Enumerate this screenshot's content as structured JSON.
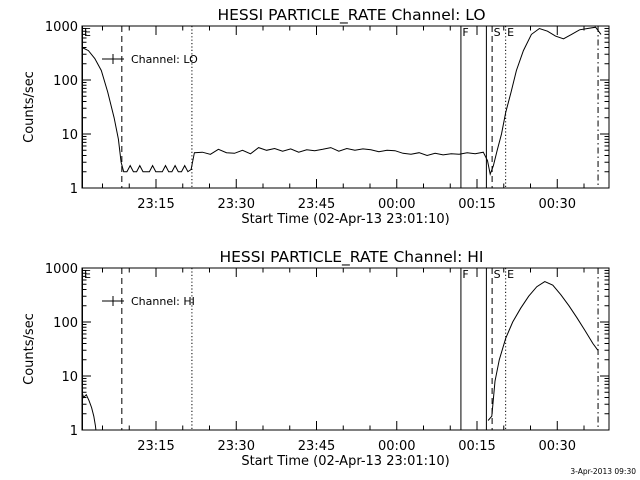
{
  "footer": {
    "timestamp": "3-Apr-2013 09:30"
  },
  "chart_data": [
    {
      "type": "line",
      "title": "HESSI PARTICLE_RATE Channel: LO",
      "xlabel": "Start Time (02-Apr-13 23:01:10)",
      "ylabel": "Counts/sec",
      "y_scale": "log",
      "ylim": [
        1,
        1000
      ],
      "xlim_minutes_after_start": [
        0,
        98.5
      ],
      "x_tick_labels": [
        {
          "label": "23:15",
          "minutes": 13.83
        },
        {
          "label": "23:30",
          "minutes": 28.83
        },
        {
          "label": "23:45",
          "minutes": 43.83
        },
        {
          "label": "00:00",
          "minutes": 58.83
        },
        {
          "label": "00:15",
          "minutes": 73.83
        },
        {
          "label": "00:30",
          "minutes": 88.83
        }
      ],
      "y_tick_labels": [
        {
          "label": "1",
          "value": 1
        },
        {
          "label": "10",
          "value": 10
        },
        {
          "label": "100",
          "value": 100
        },
        {
          "label": "1000",
          "value": 1000
        }
      ],
      "legend": {
        "label": "Channel: LO",
        "placement": "top-left"
      },
      "markers": [
        {
          "label": "E",
          "minutes": 0,
          "style": "solid"
        },
        {
          "label": "",
          "minutes": 7.35,
          "style": "dashed"
        },
        {
          "label": "",
          "minutes": 20.45,
          "style": "dotted"
        },
        {
          "label": "F",
          "minutes": 70.73,
          "style": "solid"
        },
        {
          "label": "",
          "minutes": 75.49,
          "style": "solid"
        },
        {
          "label": "S",
          "minutes": 76.56,
          "style": "dashed"
        },
        {
          "label": "E",
          "minutes": 79.09,
          "style": "dotted"
        },
        {
          "label": "",
          "minutes": 96.36,
          "style": "dashdot"
        }
      ],
      "series": [
        {
          "name": "Channel: LO",
          "minutes": [
            0,
            1.2,
            2.4,
            3.6,
            4.8,
            6.0,
            6.8,
            7.3,
            7.8,
            8.4,
            9.0,
            9.6,
            10.2,
            10.8,
            11.4,
            12.0,
            12.6,
            13.2,
            13.8,
            14.4,
            15.0,
            15.6,
            16.2,
            16.8,
            17.4,
            18.0,
            18.6,
            19.2,
            19.8,
            20.4,
            21.0,
            22.5,
            24.0,
            25.5,
            27.0,
            28.5,
            30.0,
            31.5,
            33.0,
            34.5,
            36.0,
            37.5,
            39.0,
            40.5,
            42.0,
            43.5,
            45.0,
            46.5,
            48.0,
            49.5,
            51.0,
            52.5,
            54.0,
            55.5,
            57.0,
            58.5,
            60.0,
            61.5,
            63.0,
            64.5,
            66.0,
            67.5,
            69.0,
            70.5,
            72.0,
            73.5,
            75.0,
            75.8,
            76.3,
            76.9,
            77.6,
            78.4,
            79.2,
            80.2,
            81.2,
            82.5,
            84.0,
            85.5,
            87.0,
            88.5,
            90.0,
            91.5,
            93.0,
            94.5,
            96.0,
            97.0
          ],
          "values": [
            400,
            350,
            250,
            150,
            60,
            20,
            8,
            3,
            2,
            2,
            2.6,
            2,
            2,
            2.6,
            2,
            2,
            2,
            2.6,
            2,
            2,
            2,
            2.6,
            2,
            2,
            2.6,
            2,
            2,
            2.6,
            2,
            2.2,
            4.5,
            4.6,
            4.2,
            5.2,
            4.5,
            4.4,
            5.0,
            4.3,
            5.6,
            5.0,
            5.4,
            4.8,
            5.3,
            4.6,
            5.1,
            4.9,
            5.2,
            5.6,
            4.8,
            5.4,
            5.0,
            5.3,
            5.1,
            4.7,
            5.0,
            4.9,
            4.4,
            4.2,
            4.5,
            4.0,
            4.4,
            4.1,
            4.3,
            4.2,
            4.5,
            4.3,
            4.6,
            3.2,
            1.8,
            2.6,
            5,
            10,
            25,
            60,
            150,
            350,
            700,
            900,
            800,
            650,
            580,
            700,
            850,
            900,
            950,
            700
          ]
        }
      ]
    },
    {
      "type": "line",
      "title": "HESSI PARTICLE_RATE Channel: HI",
      "xlabel": "Start Time (02-Apr-13 23:01:10)",
      "ylabel": "Counts/sec",
      "y_scale": "log",
      "ylim": [
        1,
        1000
      ],
      "xlim_minutes_after_start": [
        0,
        98.5
      ],
      "x_tick_labels": [
        {
          "label": "23:15",
          "minutes": 13.83
        },
        {
          "label": "23:30",
          "minutes": 28.83
        },
        {
          "label": "23:45",
          "minutes": 43.83
        },
        {
          "label": "00:00",
          "minutes": 58.83
        },
        {
          "label": "00:15",
          "minutes": 73.83
        },
        {
          "label": "00:30",
          "minutes": 88.83
        }
      ],
      "y_tick_labels": [
        {
          "label": "1",
          "value": 1
        },
        {
          "label": "10",
          "value": 10
        },
        {
          "label": "100",
          "value": 100
        },
        {
          "label": "1000",
          "value": 1000
        }
      ],
      "legend": {
        "label": "Channel: HI",
        "placement": "top-left"
      },
      "markers": [
        {
          "label": "E",
          "minutes": 0,
          "style": "solid"
        },
        {
          "label": "",
          "minutes": 7.35,
          "style": "dashed"
        },
        {
          "label": "",
          "minutes": 20.45,
          "style": "dotted"
        },
        {
          "label": "F",
          "minutes": 70.73,
          "style": "solid"
        },
        {
          "label": "",
          "minutes": 75.49,
          "style": "solid"
        },
        {
          "label": "S",
          "minutes": 76.56,
          "style": "dashed"
        },
        {
          "label": "E",
          "minutes": 79.09,
          "style": "dotted"
        },
        {
          "label": "",
          "minutes": 96.36,
          "style": "dashdot"
        }
      ],
      "series": [
        {
          "name": "Channel: HI",
          "minutes": [
            0,
            0.3,
            0.8,
            1.3,
            1.8,
            2.2,
            2.5,
            2.6
          ],
          "values": [
            5,
            4,
            4.5,
            3.5,
            2.6,
            1.8,
            1.2,
            1
          ]
        },
        {
          "name": "Channel: HI",
          "minutes": [
            75.9,
            76.6,
            77.2,
            78.0,
            79.2,
            80.5,
            82.0,
            83.5,
            85.0,
            86.5,
            88.0,
            89.5,
            91.0,
            92.5,
            94.0,
            95.5,
            96.4
          ],
          "values": [
            1.5,
            1.8,
            8,
            20,
            50,
            100,
            180,
            300,
            450,
            560,
            480,
            320,
            200,
            120,
            70,
            40,
            30
          ]
        }
      ]
    }
  ]
}
